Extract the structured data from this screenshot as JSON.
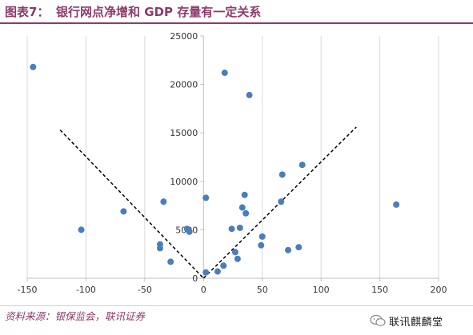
{
  "header": {
    "label": "图表7：",
    "title": "银行网点净增和 GDP 存量有一定关系"
  },
  "footer": {
    "source": "资料来源：银保监会，联讯证券",
    "brand": "联讯麒麟堂"
  },
  "colors": {
    "accent": "#8d3a6b",
    "marker": "#4a7ebb",
    "grid": "#d9d9d9",
    "trend": "#000000"
  },
  "icons": {
    "brand_icon": "wechat-icon"
  },
  "chart_data": {
    "type": "scatter",
    "title": "",
    "xlabel": "",
    "ylabel": "",
    "xlim": [
      -150,
      200
    ],
    "ylim": [
      0,
      25000
    ],
    "x_ticks": [
      "-150",
      "-100",
      "-50",
      "0",
      "50",
      "100",
      "150",
      "200"
    ],
    "y_ticks": [
      "0",
      "5000",
      "10000",
      "15000",
      "20000",
      "25000"
    ],
    "grid": "vertical",
    "series": [
      {
        "points": [
          [
            -145,
            21800
          ],
          [
            -104,
            5000
          ],
          [
            -68,
            6900
          ],
          [
            -34,
            7900
          ],
          [
            -37,
            3500
          ],
          [
            -37,
            3100
          ],
          [
            -28,
            1700
          ],
          [
            -14,
            5100
          ],
          [
            -12,
            4800
          ],
          [
            2,
            600
          ],
          [
            2,
            8300
          ],
          [
            12,
            700
          ],
          [
            18,
            21200
          ],
          [
            17,
            1300
          ],
          [
            24,
            5100
          ],
          [
            27,
            2700
          ],
          [
            29,
            2000
          ],
          [
            31,
            5200
          ],
          [
            33,
            7300
          ],
          [
            35,
            8600
          ],
          [
            36,
            6700
          ],
          [
            39,
            18900
          ],
          [
            49,
            3400
          ],
          [
            50,
            4300
          ],
          [
            66,
            7900
          ],
          [
            67,
            10700
          ],
          [
            72,
            2900
          ],
          [
            81,
            3200
          ],
          [
            84,
            11700
          ],
          [
            164,
            7600
          ]
        ]
      }
    ],
    "trend_lines": [
      {
        "x": [
          -122,
          0
        ],
        "y": [
          15300,
          0
        ]
      },
      {
        "x": [
          0,
          130
        ],
        "y": [
          0,
          15600
        ]
      }
    ]
  }
}
